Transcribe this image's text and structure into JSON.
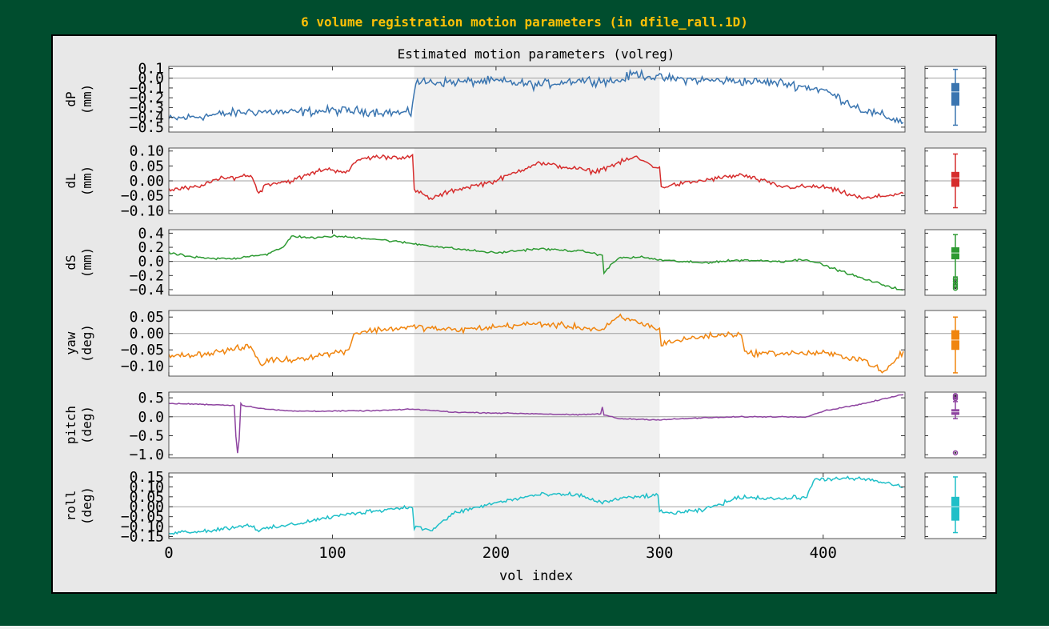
{
  "page_title": "6 volume registration motion parameters (in dfile_rall.1D)",
  "colors": {
    "background": "#004d2e",
    "title": "#ffc107",
    "figure_bg": "#e8e8e8",
    "highlight_band": "#f0f0f0"
  },
  "chart_data": {
    "type": "line",
    "title": "Estimated motion parameters (volreg)",
    "xlabel": "vol index",
    "xlim": [
      0,
      450
    ],
    "xticks": [
      0,
      100,
      200,
      300,
      400
    ],
    "shaded_range": [
      150,
      300
    ],
    "n_points": 450,
    "series": [
      {
        "name": "dP",
        "ylabel_line1": "dP",
        "ylabel_line2": "(mm)",
        "color": "#3a75b0",
        "ylim": [
          -0.55,
          0.12
        ],
        "yticks": [
          0.1,
          0.0,
          -0.1,
          -0.2,
          -0.3,
          -0.4,
          -0.5
        ],
        "yticklabels": [
          "0.1",
          "0.0",
          "−0.1",
          "−0.2",
          "−0.3",
          "−0.4",
          "−0.5"
        ],
        "x": [
          0,
          25,
          50,
          75,
          100,
          125,
          148,
          150,
          151,
          175,
          200,
          225,
          250,
          275,
          285,
          300,
          325,
          350,
          375,
          400,
          425,
          450
        ],
        "values": [
          -0.42,
          -0.38,
          -0.34,
          -0.35,
          -0.33,
          -0.34,
          -0.36,
          -0.13,
          -0.04,
          -0.04,
          -0.03,
          -0.07,
          -0.02,
          -0.03,
          0.05,
          0.0,
          -0.02,
          -0.03,
          -0.05,
          -0.12,
          -0.33,
          -0.45
        ],
        "noise": 0.035,
        "box": {
          "whisker_low": -0.48,
          "q1": -0.28,
          "median": -0.14,
          "q3": -0.05,
          "whisker_high": 0.09,
          "outliers": []
        }
      },
      {
        "name": "dL",
        "ylabel_line1": "dL",
        "ylabel_line2": "(mm)",
        "color": "#d62d2d",
        "ylim": [
          -0.11,
          0.11
        ],
        "yticks": [
          0.1,
          0.05,
          0.0,
          -0.05,
          -0.1
        ],
        "yticklabels": [
          "0.10",
          "0.05",
          "0.00",
          "−0.05",
          "−0.10"
        ],
        "x": [
          0,
          20,
          25,
          50,
          55,
          60,
          75,
          95,
          110,
          115,
          125,
          140,
          149,
          150,
          160,
          175,
          200,
          225,
          250,
          260,
          275,
          285,
          300,
          301,
          325,
          350,
          375,
          400,
          425,
          450
        ],
        "values": [
          -0.03,
          -0.02,
          0.0,
          0.02,
          -0.04,
          -0.01,
          0.0,
          0.04,
          0.03,
          0.07,
          0.08,
          0.08,
          0.08,
          -0.03,
          -0.06,
          -0.03,
          0.0,
          0.06,
          0.04,
          0.03,
          0.06,
          0.08,
          0.04,
          -0.02,
          0.0,
          0.02,
          -0.02,
          -0.02,
          -0.06,
          -0.04
        ],
        "noise": 0.006,
        "box": {
          "whisker_low": -0.09,
          "q1": -0.02,
          "median": 0.01,
          "q3": 0.03,
          "whisker_high": 0.09,
          "outliers": []
        }
      },
      {
        "name": "dS",
        "ylabel_line1": "dS",
        "ylabel_line2": "(mm)",
        "color": "#2d9a32",
        "ylim": [
          -0.48,
          0.45
        ],
        "yticks": [
          0.4,
          0.2,
          0.0,
          -0.2,
          -0.4
        ],
        "yticklabels": [
          "0.4",
          "0.2",
          "0.0",
          "−0.2",
          "−0.4"
        ],
        "x": [
          0,
          15,
          25,
          40,
          50,
          60,
          70,
          75,
          90,
          100,
          125,
          150,
          175,
          200,
          225,
          255,
          265,
          266,
          275,
          290,
          300,
          325,
          350,
          375,
          390,
          400,
          425,
          450
        ],
        "values": [
          0.12,
          0.06,
          0.04,
          0.04,
          0.08,
          0.1,
          0.2,
          0.36,
          0.33,
          0.36,
          0.32,
          0.25,
          0.18,
          0.12,
          0.18,
          0.14,
          0.08,
          -0.15,
          0.05,
          0.06,
          0.02,
          -0.02,
          0.02,
          0.0,
          0.03,
          -0.05,
          -0.25,
          -0.42
        ],
        "noise": 0.012,
        "box": {
          "whisker_low": -0.22,
          "q1": 0.03,
          "median": 0.12,
          "q3": 0.2,
          "whisker_high": 0.38,
          "outliers": [
            -0.25,
            -0.28,
            -0.32,
            -0.35,
            -0.38
          ]
        }
      },
      {
        "name": "yaw",
        "ylabel_line1": "yaw",
        "ylabel_line2": "(deg)",
        "color": "#f0850f",
        "ylim": [
          -0.13,
          0.07
        ],
        "yticks": [
          0.05,
          0.0,
          -0.05,
          -0.1
        ],
        "yticklabels": [
          "0.05",
          "0.00",
          "−0.05",
          "−0.10"
        ],
        "x": [
          0,
          25,
          50,
          57,
          60,
          75,
          100,
          110,
          113,
          125,
          150,
          175,
          200,
          225,
          250,
          265,
          275,
          290,
          300,
          301,
          325,
          350,
          352,
          375,
          400,
          425,
          437,
          450
        ],
        "values": [
          -0.07,
          -0.06,
          -0.04,
          -0.1,
          -0.08,
          -0.08,
          -0.06,
          -0.05,
          0.0,
          0.01,
          0.02,
          0.01,
          0.02,
          0.03,
          0.02,
          0.01,
          0.05,
          0.03,
          0.01,
          -0.03,
          -0.01,
          0.0,
          -0.06,
          -0.06,
          -0.06,
          -0.08,
          -0.12,
          -0.05
        ],
        "noise": 0.007,
        "box": {
          "whisker_low": -0.12,
          "q1": -0.05,
          "median": -0.02,
          "q3": 0.01,
          "whisker_high": 0.05,
          "outliers": []
        }
      },
      {
        "name": "pitch",
        "ylabel_line1": "pitch",
        "ylabel_line2": "(deg)",
        "color": "#8e44a0",
        "ylim": [
          -1.08,
          0.65
        ],
        "yticks": [
          0.5,
          0.0,
          -0.5,
          -1.0
        ],
        "yticklabels": [
          "0.5",
          "0.0",
          "−0.5",
          "−1.0"
        ],
        "x": [
          0,
          20,
          40,
          41,
          42,
          43,
          44,
          45,
          60,
          75,
          100,
          125,
          150,
          175,
          200,
          225,
          250,
          264,
          265,
          266,
          275,
          300,
          325,
          350,
          390,
          400,
          425,
          450
        ],
        "values": [
          0.35,
          0.33,
          0.3,
          -0.5,
          -0.95,
          -0.6,
          0.35,
          0.3,
          0.2,
          0.15,
          0.15,
          0.16,
          0.2,
          0.12,
          0.1,
          0.08,
          0.05,
          0.08,
          0.25,
          0.05,
          -0.05,
          -0.08,
          -0.03,
          0.0,
          0.0,
          0.15,
          0.35,
          0.6
        ],
        "noise": 0.01,
        "box": {
          "whisker_low": -0.05,
          "q1": 0.05,
          "median": 0.13,
          "q3": 0.2,
          "whisker_high": 0.4,
          "outliers": [
            0.48,
            0.52,
            0.56,
            -0.95
          ]
        }
      },
      {
        "name": "roll",
        "ylabel_line1": "roll",
        "ylabel_line2": "(deg)",
        "color": "#1fbfc8",
        "ylim": [
          -0.16,
          0.17
        ],
        "yticks": [
          0.15,
          0.1,
          0.05,
          0.0,
          -0.05,
          -0.1,
          -0.15
        ],
        "yticklabels": [
          "0.15",
          "0.10",
          "0.05",
          "0.00",
          "−0.05",
          "−0.10",
          "−0.15"
        ],
        "x": [
          0,
          25,
          50,
          55,
          60,
          75,
          100,
          125,
          149,
          150,
          160,
          175,
          200,
          225,
          250,
          265,
          275,
          299,
          300,
          310,
          325,
          350,
          375,
          390,
          395,
          410,
          425,
          450
        ],
        "values": [
          -0.13,
          -0.12,
          -0.09,
          -0.12,
          -0.11,
          -0.09,
          -0.05,
          -0.02,
          0.0,
          -0.1,
          -0.12,
          -0.03,
          0.02,
          0.06,
          0.06,
          0.02,
          0.04,
          0.06,
          -0.03,
          -0.03,
          -0.02,
          0.05,
          0.04,
          0.05,
          0.14,
          0.14,
          0.14,
          0.1
        ],
        "noise": 0.008,
        "box": {
          "whisker_low": -0.13,
          "q1": -0.07,
          "median": 0.0,
          "q3": 0.05,
          "whisker_high": 0.15,
          "outliers": []
        }
      }
    ]
  }
}
